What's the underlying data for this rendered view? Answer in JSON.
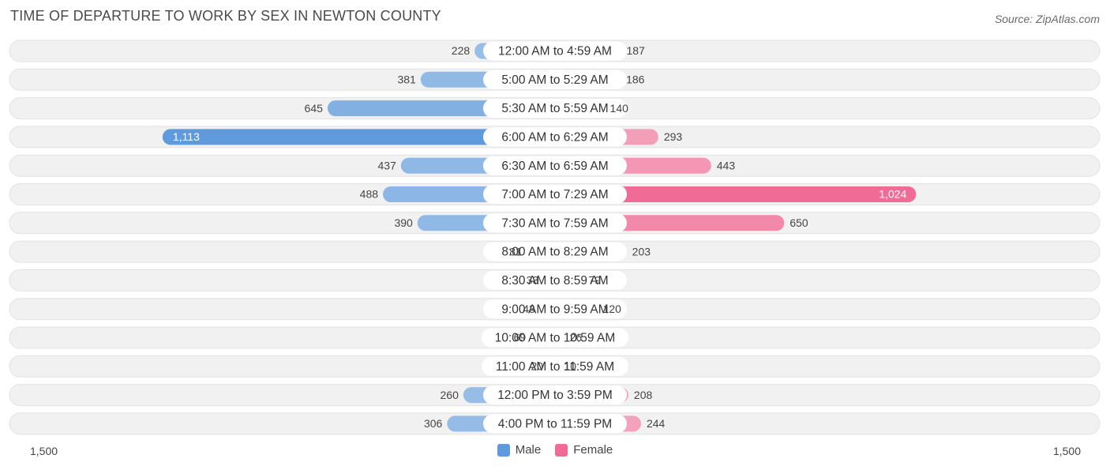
{
  "title": "TIME OF DEPARTURE TO WORK BY SEX IN NEWTON COUNTY",
  "source": "Source: ZipAtlas.com",
  "colors": {
    "male_light": "#9ec1e8",
    "male_strong": "#5f9bdc",
    "female_light": "#f5a8c1",
    "female_strong": "#f06b96",
    "row_bg": "#f1f1f1"
  },
  "legend": {
    "male": "Male",
    "female": "Female"
  },
  "axis": {
    "left_label": "1,500",
    "right_label": "1,500"
  },
  "chart_data": {
    "type": "bar",
    "orientation": "horizontal-diverging",
    "categories": [
      "12:00 AM to 4:59 AM",
      "5:00 AM to 5:29 AM",
      "5:30 AM to 5:59 AM",
      "6:00 AM to 6:29 AM",
      "6:30 AM to 6:59 AM",
      "7:00 AM to 7:29 AM",
      "7:30 AM to 7:59 AM",
      "8:00 AM to 8:29 AM",
      "8:30 AM to 8:59 AM",
      "9:00 AM to 9:59 AM",
      "10:00 AM to 10:59 AM",
      "11:00 AM to 11:59 AM",
      "12:00 PM to 3:59 PM",
      "4:00 PM to 11:59 PM"
    ],
    "series": [
      {
        "name": "Male",
        "values": [
          228,
          381,
          645,
          1113,
          437,
          488,
          390,
          81,
          33,
          43,
          69,
          20,
          260,
          306
        ],
        "labels": [
          "228",
          "381",
          "645",
          "1,113",
          "437",
          "488",
          "390",
          "81",
          "33",
          "43",
          "69",
          "20",
          "260",
          "306"
        ]
      },
      {
        "name": "Female",
        "values": [
          187,
          186,
          140,
          293,
          443,
          1024,
          650,
          203,
          79,
          120,
          26,
          10,
          208,
          244
        ],
        "labels": [
          "187",
          "186",
          "140",
          "293",
          "443",
          "1,024",
          "650",
          "203",
          "79",
          "120",
          "26",
          "10",
          "208",
          "244"
        ]
      }
    ],
    "xlim": [
      -1500,
      1500
    ],
    "legend_position": "bottom-center"
  }
}
